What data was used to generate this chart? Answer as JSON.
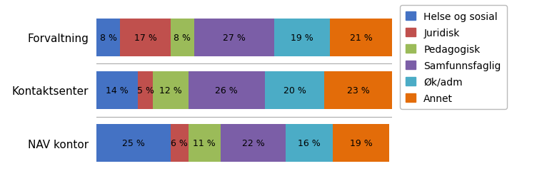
{
  "categories": [
    "Forvaltning",
    "Kontaktsenter",
    "NAV kontor"
  ],
  "series": [
    {
      "name": "Helse og sosial",
      "values": [
        8,
        14,
        25
      ],
      "color": "#4472C4"
    },
    {
      "name": "Juridisk",
      "values": [
        17,
        5,
        6
      ],
      "color": "#C0504D"
    },
    {
      "name": "Pedagogisk",
      "values": [
        8,
        12,
        11
      ],
      "color": "#9BBB59"
    },
    {
      "name": "Samfunnsfaglig",
      "values": [
        27,
        26,
        22
      ],
      "color": "#7B5EA7"
    },
    {
      "name": "Øk/adm",
      "values": [
        19,
        20,
        16
      ],
      "color": "#4BACC6"
    },
    {
      "name": "Annet",
      "values": [
        21,
        23,
        19
      ],
      "color": "#E36C09"
    }
  ],
  "labels": [
    [
      "8 %",
      "17 %",
      "8 %",
      "27 %",
      "19 %",
      "21 %"
    ],
    [
      "14 %",
      "5 %",
      "12 %",
      "26 %",
      "20 %",
      "23 %"
    ],
    [
      "25 %",
      "6 %",
      "11 %",
      "22 %",
      "16 %",
      "19 %"
    ]
  ],
  "background_color": "#FFFFFF",
  "bar_height": 0.72,
  "fontsize": 9,
  "ylabel_fontsize": 11,
  "legend_fontsize": 10
}
